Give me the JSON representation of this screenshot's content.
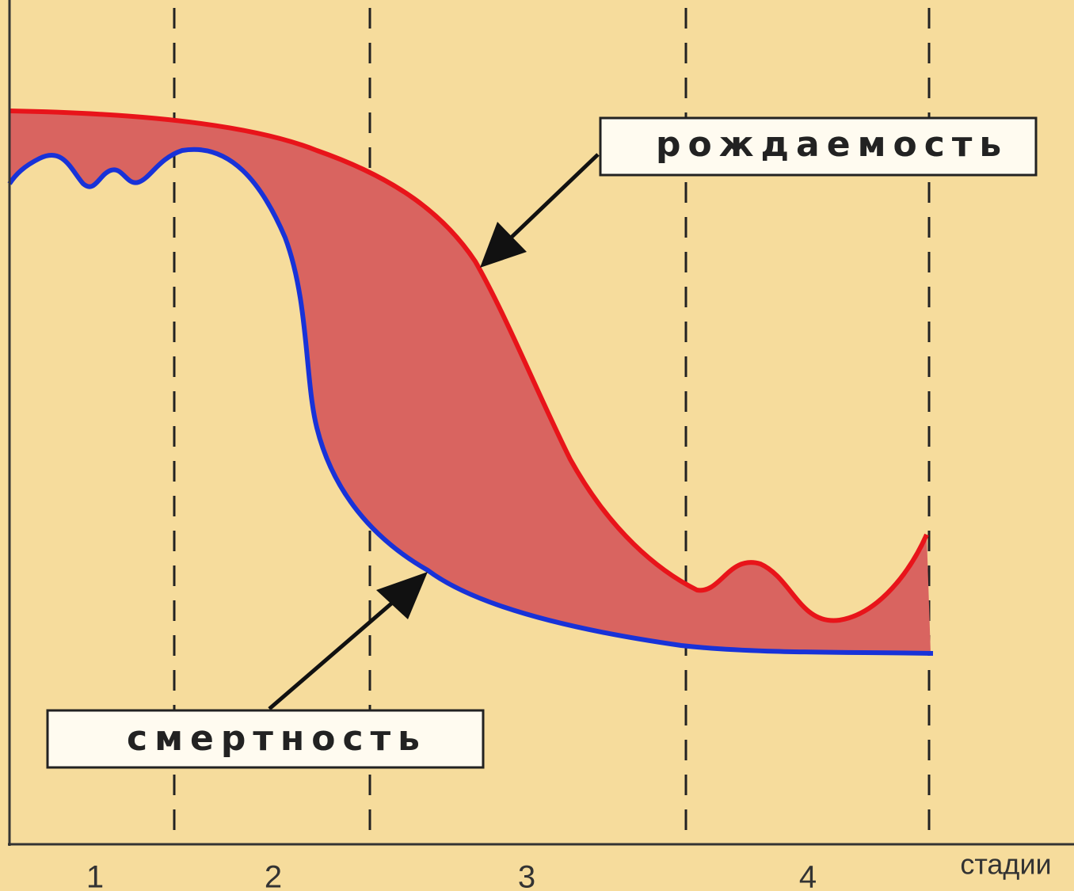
{
  "labels": {
    "birth": "рождаемость",
    "death": "смертность"
  },
  "axis": {
    "label": "стадии"
  },
  "stages": [
    "1",
    "2",
    "3",
    "4"
  ]
}
